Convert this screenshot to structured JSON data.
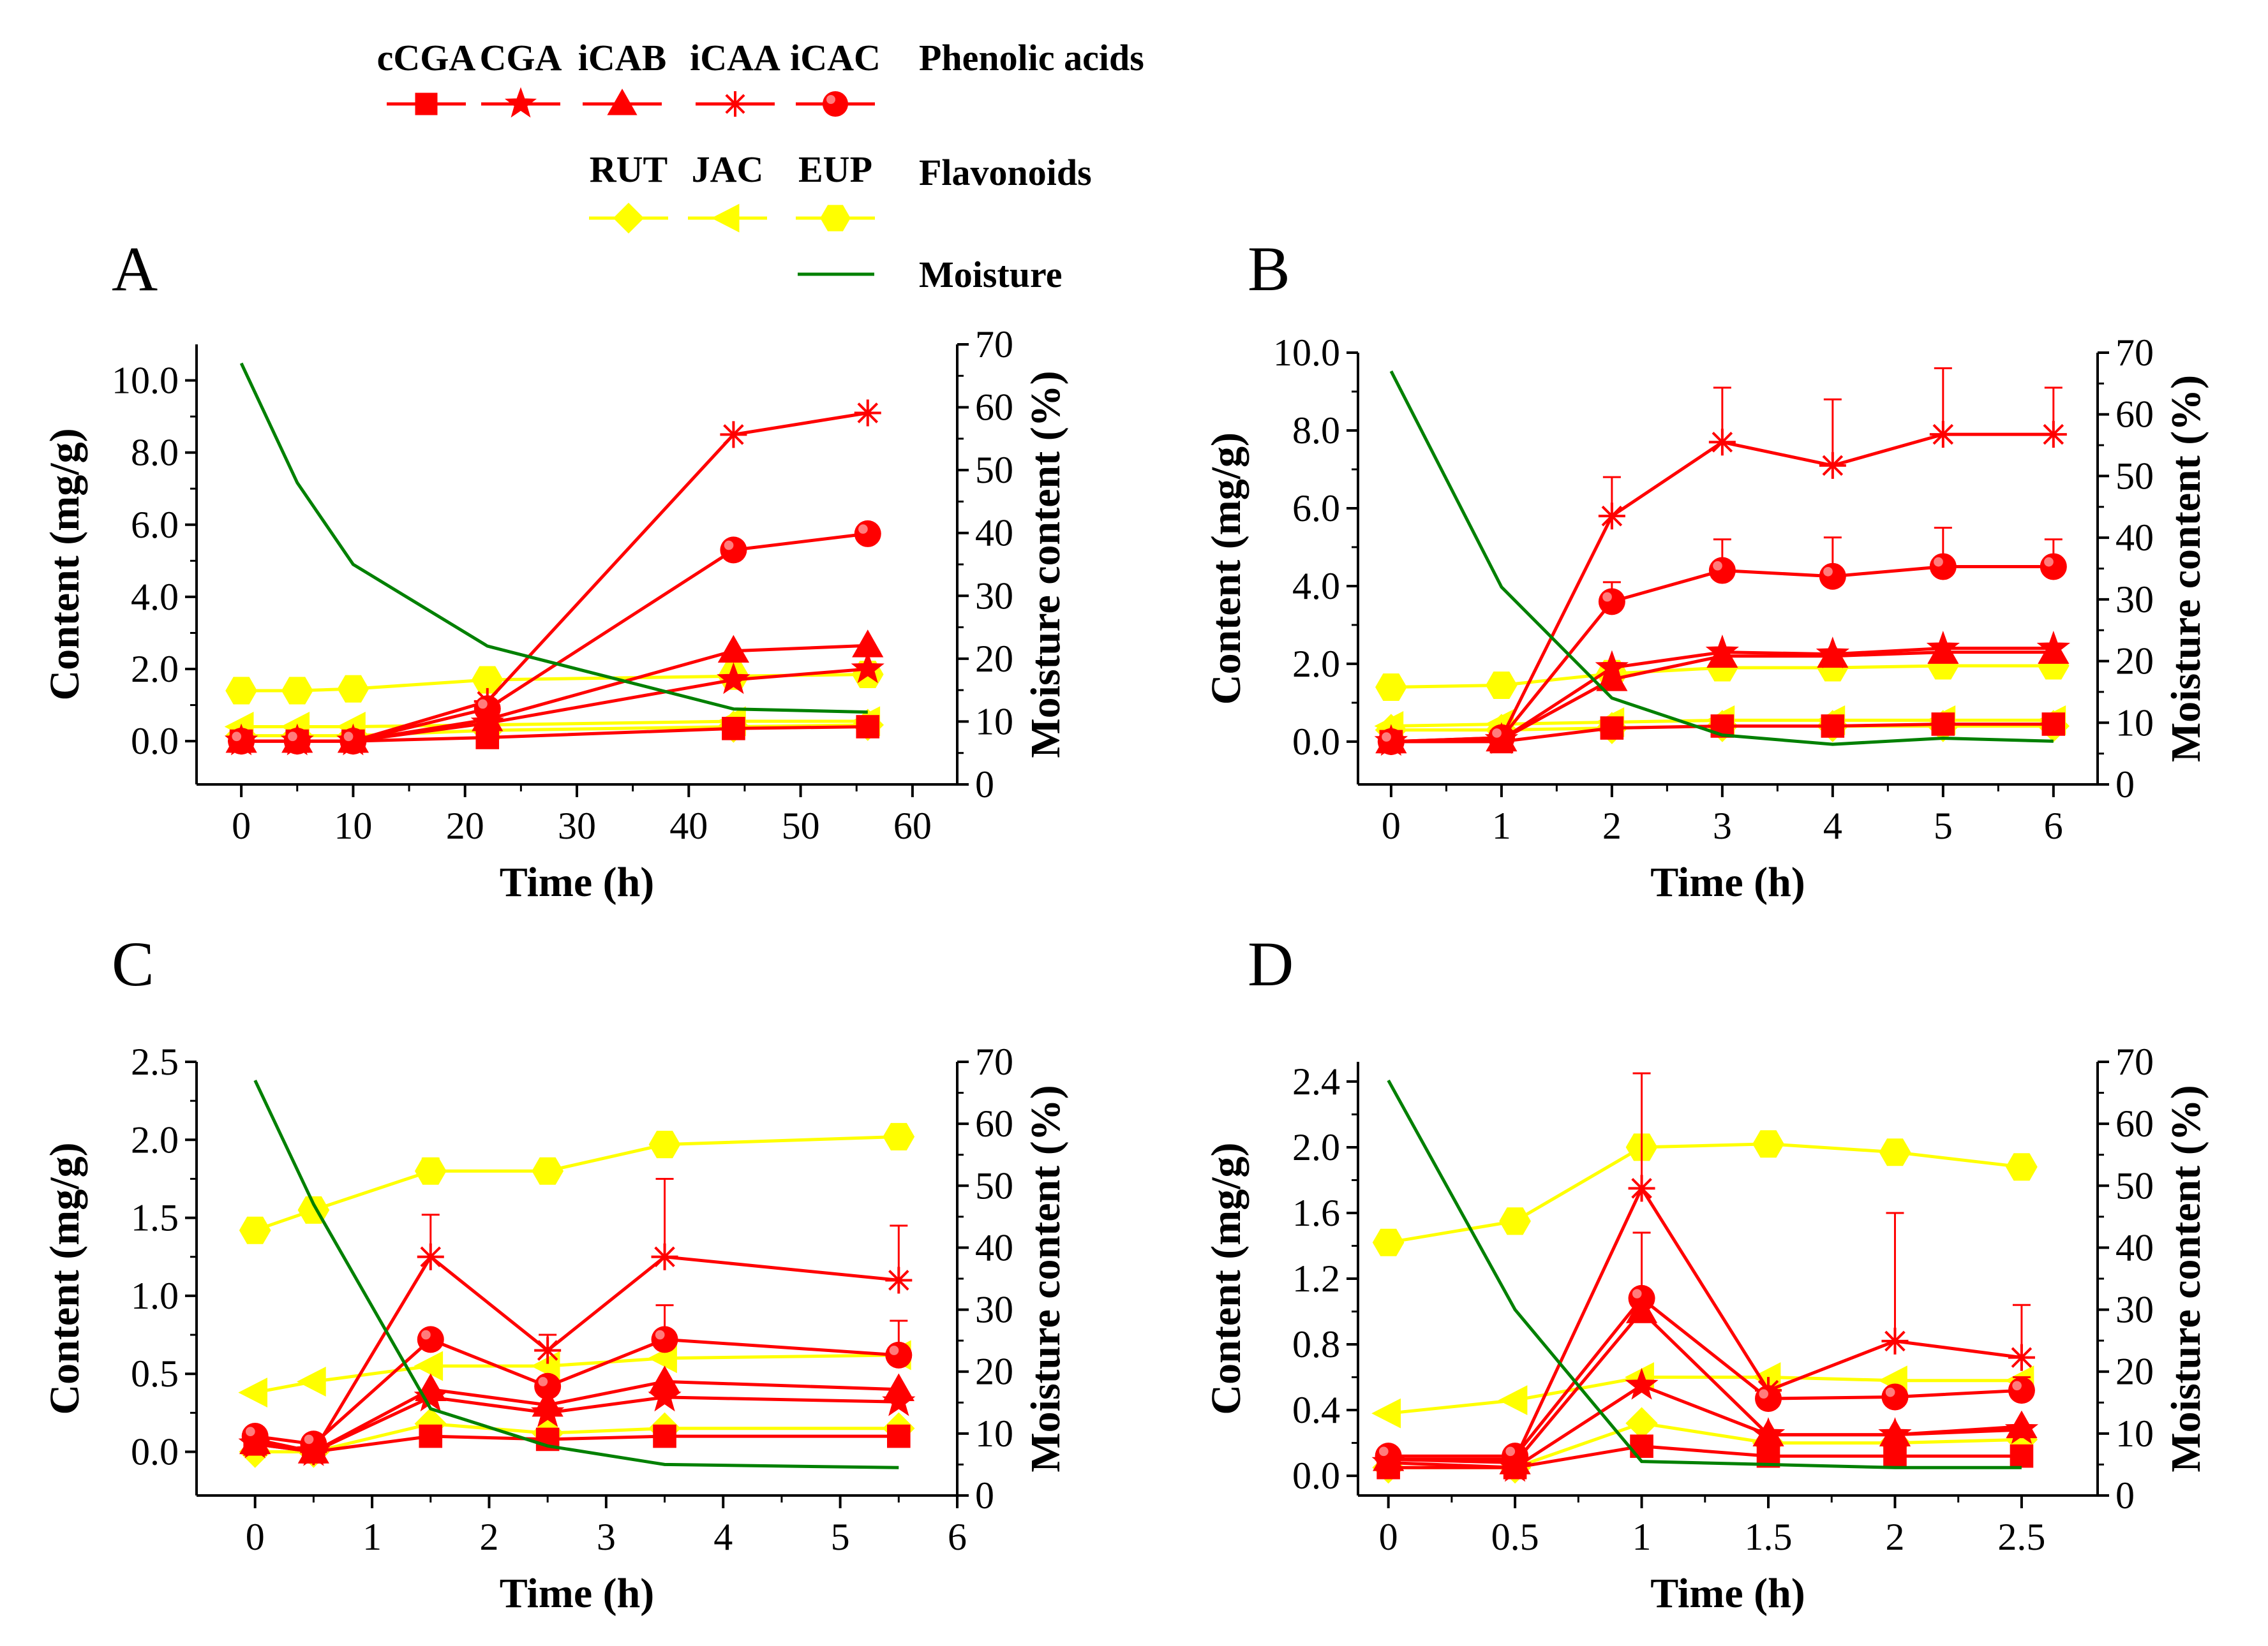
{
  "colors": {
    "phenolic": "#ff0000",
    "flavonoid": "#ffff00",
    "moisture": "#008000"
  },
  "legend": {
    "phenolic_title": "Phenolic acids",
    "flavonoid_title": "Flavonoids",
    "moisture_label": "Moisture",
    "phenolic_items": [
      {
        "label": "cCGA",
        "marker": "square"
      },
      {
        "label": "CGA",
        "marker": "star"
      },
      {
        "label": "iCAB",
        "marker": "triangle"
      },
      {
        "label": "iCAA",
        "marker": "asterisk"
      },
      {
        "label": "iCAC",
        "marker": "circle"
      }
    ],
    "flavonoid_items": [
      {
        "label": "RUT",
        "marker": "diamond"
      },
      {
        "label": "JAC",
        "marker": "triangle-left"
      },
      {
        "label": "EUP",
        "marker": "hexagon"
      }
    ]
  },
  "chart_data": [
    {
      "type": "line",
      "panel": "A",
      "xlabel": "Time (h)",
      "ylabel": "Content (mg/g)",
      "y2label": "Moisture content (%)",
      "xlim": [
        -4,
        64
      ],
      "ylim": [
        -1.2,
        11.0
      ],
      "y2lim": [
        0,
        70
      ],
      "xticks": [
        0,
        10,
        20,
        30,
        40,
        50,
        60
      ],
      "xtick_labels": [
        "0",
        "10",
        "20",
        "30",
        "40",
        "50",
        "60"
      ],
      "yticks": [
        0,
        2,
        4,
        6,
        8,
        10
      ],
      "ytick_labels": [
        "0.0",
        "2.0",
        "4.0",
        "6.0",
        "8.0",
        "10.0"
      ],
      "y2ticks": [
        0,
        10,
        20,
        30,
        40,
        50,
        60,
        70
      ],
      "y2tick_labels": [
        "0",
        "10",
        "20",
        "30",
        "40",
        "50",
        "60",
        "70"
      ],
      "x": [
        0,
        5,
        10,
        22,
        44,
        56
      ],
      "series": [
        {
          "name": "cCGA",
          "group": "phenolic",
          "marker": "square",
          "values": [
            0.0,
            0.0,
            0.0,
            0.1,
            0.35,
            0.4
          ]
        },
        {
          "name": "CGA",
          "group": "phenolic",
          "marker": "star",
          "values": [
            0.0,
            0.0,
            0.0,
            0.5,
            1.7,
            2.0
          ]
        },
        {
          "name": "iCAB",
          "group": "phenolic",
          "marker": "triangle",
          "values": [
            0.0,
            0.0,
            0.0,
            0.6,
            2.5,
            2.65
          ]
        },
        {
          "name": "iCAA",
          "group": "phenolic",
          "marker": "asterisk",
          "values": [
            0.0,
            0.0,
            0.0,
            1.1,
            8.5,
            9.1
          ]
        },
        {
          "name": "iCAC",
          "group": "phenolic",
          "marker": "circle",
          "values": [
            0.0,
            0.0,
            0.0,
            0.9,
            5.3,
            5.75
          ]
        },
        {
          "name": "RUT",
          "group": "flavonoid",
          "marker": "diamond",
          "values": [
            0.15,
            0.15,
            0.15,
            0.3,
            0.4,
            0.45
          ]
        },
        {
          "name": "JAC",
          "group": "flavonoid",
          "marker": "triangle-left",
          "values": [
            0.4,
            0.4,
            0.4,
            0.45,
            0.55,
            0.55
          ]
        },
        {
          "name": "EUP",
          "group": "flavonoid",
          "marker": "hexagon",
          "values": [
            1.4,
            1.4,
            1.45,
            1.7,
            1.8,
            1.85
          ]
        }
      ],
      "moisture": [
        67,
        48,
        35,
        22,
        12,
        11.5
      ]
    },
    {
      "type": "line",
      "panel": "B",
      "xlabel": "Time (h)",
      "ylabel": "Content (mg/g)",
      "y2label": "Moisture content (%)",
      "xlim": [
        -0.3,
        6.4
      ],
      "ylim": [
        -1.1,
        10.0
      ],
      "y2lim": [
        0,
        70
      ],
      "xticks": [
        0,
        1,
        2,
        3,
        4,
        5,
        6
      ],
      "xtick_labels": [
        "0",
        "1",
        "2",
        "3",
        "4",
        "5",
        "6"
      ],
      "yticks": [
        0,
        2,
        4,
        6,
        8,
        10
      ],
      "ytick_labels": [
        "0.0",
        "2.0",
        "4.0",
        "6.0",
        "8.0",
        "10.0"
      ],
      "y2ticks": [
        0,
        10,
        20,
        30,
        40,
        50,
        60,
        70
      ],
      "y2tick_labels": [
        "0",
        "10",
        "20",
        "30",
        "40",
        "50",
        "60",
        "70"
      ],
      "x": [
        0,
        1,
        2,
        3,
        4,
        5,
        6
      ],
      "series": [
        {
          "name": "cCGA",
          "group": "phenolic",
          "marker": "square",
          "values": [
            0.0,
            0.0,
            0.35,
            0.4,
            0.4,
            0.45,
            0.45
          ]
        },
        {
          "name": "CGA",
          "group": "phenolic",
          "marker": "star",
          "values": [
            0.0,
            0.05,
            1.9,
            2.3,
            2.25,
            2.4,
            2.4
          ]
        },
        {
          "name": "iCAB",
          "group": "phenolic",
          "marker": "triangle",
          "values": [
            0.0,
            0.05,
            1.6,
            2.2,
            2.2,
            2.3,
            2.3
          ]
        },
        {
          "name": "iCAA",
          "group": "phenolic",
          "marker": "asterisk",
          "values": [
            0.0,
            0.1,
            5.8,
            7.7,
            7.1,
            7.9,
            7.9
          ],
          "errors": [
            0,
            0,
            1.0,
            1.4,
            1.7,
            1.7,
            1.2
          ]
        },
        {
          "name": "iCAC",
          "group": "phenolic",
          "marker": "circle",
          "values": [
            0.0,
            0.1,
            3.6,
            4.4,
            4.25,
            4.5,
            4.5
          ],
          "errors": [
            0,
            0,
            0.5,
            0.8,
            1.0,
            1.0,
            0.7
          ]
        },
        {
          "name": "RUT",
          "group": "flavonoid",
          "marker": "diamond",
          "values": [
            0.3,
            0.3,
            0.35,
            0.4,
            0.4,
            0.4,
            0.4
          ]
        },
        {
          "name": "JAC",
          "group": "flavonoid",
          "marker": "triangle-left",
          "values": [
            0.4,
            0.45,
            0.5,
            0.55,
            0.55,
            0.55,
            0.55
          ]
        },
        {
          "name": "EUP",
          "group": "flavonoid",
          "marker": "hexagon",
          "values": [
            1.4,
            1.45,
            1.75,
            1.9,
            1.9,
            1.95,
            1.95
          ]
        }
      ],
      "moisture": [
        67,
        32,
        14,
        8,
        6.5,
        7.5,
        7
      ]
    },
    {
      "type": "line",
      "panel": "C",
      "xlabel": "Time (h)",
      "ylabel": "Content (mg/g)",
      "y2label": "Moisture content (%)",
      "xlim": [
        -0.5,
        6.0
      ],
      "ylim": [
        -0.28,
        2.5
      ],
      "y2lim": [
        0,
        70
      ],
      "xticks": [
        0,
        1,
        2,
        3,
        4,
        5,
        6
      ],
      "xtick_labels": [
        "0",
        "1",
        "2",
        "3",
        "4",
        "5",
        "6"
      ],
      "yticks": [
        0,
        0.5,
        1.0,
        1.5,
        2.0,
        2.5
      ],
      "ytick_labels": [
        "0.0",
        "0.5",
        "1.0",
        "1.5",
        "2.0",
        "2.5"
      ],
      "y2ticks": [
        0,
        10,
        20,
        30,
        40,
        50,
        60,
        70
      ],
      "y2tick_labels": [
        "0",
        "10",
        "20",
        "30",
        "40",
        "50",
        "60",
        "70"
      ],
      "x": [
        0,
        0.5,
        1.5,
        2.5,
        3.5,
        5.5
      ],
      "series": [
        {
          "name": "cCGA",
          "group": "phenolic",
          "marker": "square",
          "values": [
            0.05,
            0.0,
            0.1,
            0.08,
            0.1,
            0.1
          ]
        },
        {
          "name": "CGA",
          "group": "phenolic",
          "marker": "star",
          "values": [
            0.05,
            0.0,
            0.35,
            0.25,
            0.35,
            0.32
          ]
        },
        {
          "name": "iCAB",
          "group": "phenolic",
          "marker": "triangle",
          "values": [
            0.06,
            0.0,
            0.4,
            0.3,
            0.45,
            0.4
          ]
        },
        {
          "name": "iCAA",
          "group": "phenolic",
          "marker": "asterisk",
          "values": [
            0.08,
            0.0,
            1.25,
            0.65,
            1.25,
            1.1
          ],
          "errors": [
            0,
            0,
            0.27,
            0.1,
            0.5,
            0.35
          ]
        },
        {
          "name": "iCAC",
          "group": "phenolic",
          "marker": "circle",
          "values": [
            0.1,
            0.05,
            0.72,
            0.42,
            0.72,
            0.62
          ],
          "errors": [
            0,
            0,
            0.05,
            0.05,
            0.22,
            0.22
          ]
        },
        {
          "name": "RUT",
          "group": "flavonoid",
          "marker": "diamond",
          "values": [
            0.0,
            0.0,
            0.18,
            0.12,
            0.15,
            0.15
          ]
        },
        {
          "name": "JAC",
          "group": "flavonoid",
          "marker": "triangle-left",
          "values": [
            0.38,
            0.45,
            0.55,
            0.55,
            0.6,
            0.62
          ]
        },
        {
          "name": "EUP",
          "group": "flavonoid",
          "marker": "hexagon",
          "values": [
            1.42,
            1.55,
            1.8,
            1.8,
            1.97,
            2.02
          ],
          "errors": [
            0,
            0,
            0.08,
            0,
            0,
            0
          ]
        }
      ],
      "moisture": [
        67,
        47,
        14,
        8,
        5,
        4.5
      ]
    },
    {
      "type": "line",
      "panel": "D",
      "xlabel": "Time (h)",
      "ylabel": "Content (mg/g)",
      "y2label": "Moisture content (%)",
      "xlim": [
        -0.12,
        2.8
      ],
      "ylim": [
        -0.12,
        2.52
      ],
      "y2lim": [
        0,
        70
      ],
      "xticks": [
        0,
        0.5,
        1,
        1.5,
        2,
        2.5
      ],
      "xtick_labels": [
        "0",
        "0.5",
        "1",
        "1.5",
        "2",
        "2.5"
      ],
      "yticks": [
        0,
        0.4,
        0.8,
        1.2,
        1.6,
        2.0,
        2.4
      ],
      "ytick_labels": [
        "0.0",
        "0.4",
        "0.8",
        "1.2",
        "1.6",
        "2.0",
        "2.4"
      ],
      "y2ticks": [
        0,
        10,
        20,
        30,
        40,
        50,
        60,
        70
      ],
      "y2tick_labels": [
        "0",
        "10",
        "20",
        "30",
        "40",
        "50",
        "60",
        "70"
      ],
      "x": [
        0,
        0.5,
        1,
        1.5,
        2,
        2.5
      ],
      "series": [
        {
          "name": "cCGA",
          "group": "phenolic",
          "marker": "square",
          "values": [
            0.05,
            0.05,
            0.18,
            0.12,
            0.12,
            0.12
          ]
        },
        {
          "name": "CGA",
          "group": "phenolic",
          "marker": "star",
          "values": [
            0.08,
            0.05,
            0.55,
            0.25,
            0.25,
            0.28
          ]
        },
        {
          "name": "iCAB",
          "group": "phenolic",
          "marker": "triangle",
          "values": [
            0.1,
            0.08,
            1.0,
            0.25,
            0.25,
            0.3
          ]
        },
        {
          "name": "iCAA",
          "group": "phenolic",
          "marker": "asterisk",
          "values": [
            0.1,
            0.1,
            1.75,
            0.52,
            0.82,
            0.72
          ],
          "errors": [
            0,
            0,
            0.7,
            0,
            0.78,
            0.32
          ]
        },
        {
          "name": "iCAC",
          "group": "phenolic",
          "marker": "circle",
          "values": [
            0.12,
            0.12,
            1.08,
            0.47,
            0.48,
            0.52
          ],
          "errors": [
            0,
            0,
            0.4,
            0,
            0,
            0.08
          ]
        },
        {
          "name": "RUT",
          "group": "flavonoid",
          "marker": "diamond",
          "values": [
            0.05,
            0.05,
            0.32,
            0.2,
            0.2,
            0.22
          ]
        },
        {
          "name": "JAC",
          "group": "flavonoid",
          "marker": "triangle-left",
          "values": [
            0.38,
            0.46,
            0.6,
            0.6,
            0.58,
            0.58
          ]
        },
        {
          "name": "EUP",
          "group": "flavonoid",
          "marker": "hexagon",
          "values": [
            1.42,
            1.55,
            2.0,
            2.02,
            1.97,
            1.88
          ]
        }
      ],
      "moisture": [
        67,
        30,
        5.5,
        5,
        4.5,
        4.5
      ]
    }
  ]
}
